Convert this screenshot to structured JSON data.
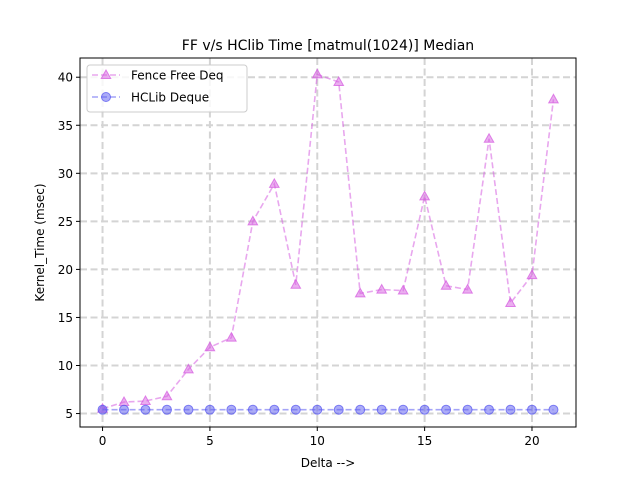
{
  "chart_data": {
    "type": "line",
    "title": "FF v/s HClib Time [matmul(1024)] Median",
    "xlabel": "Delta -->",
    "ylabel": "Kernel_Time (msec)",
    "x": [
      0,
      1,
      2,
      3,
      4,
      5,
      6,
      7,
      8,
      9,
      10,
      11,
      12,
      13,
      14,
      15,
      16,
      17,
      18,
      19,
      20,
      21
    ],
    "xlim": [
      -1.05,
      22.05
    ],
    "ylim": [
      3.6,
      42.0
    ],
    "xticks": [
      0,
      5,
      10,
      15,
      20
    ],
    "yticks": [
      5,
      10,
      15,
      20,
      25,
      30,
      35,
      40
    ],
    "grid": true,
    "legend_position": "upper-left",
    "series": [
      {
        "name": "Fence Free Deq",
        "color": "#d55ee0",
        "marker": "triangle-up",
        "linestyle": "dashed",
        "values": [
          5.5,
          6.2,
          6.3,
          6.8,
          9.6,
          11.9,
          12.9,
          25.0,
          28.9,
          18.4,
          40.3,
          39.5,
          17.5,
          17.9,
          17.8,
          27.6,
          18.3,
          17.9,
          33.6,
          16.5,
          19.4,
          37.7
        ]
      },
      {
        "name": "HCLib Deque",
        "color": "#5a5af0",
        "marker": "circle",
        "linestyle": "dashed",
        "values": [
          5.4,
          5.4,
          5.4,
          5.4,
          5.4,
          5.4,
          5.4,
          5.4,
          5.4,
          5.4,
          5.4,
          5.4,
          5.4,
          5.4,
          5.4,
          5.4,
          5.4,
          5.4,
          5.4,
          5.4,
          5.4,
          5.4
        ]
      }
    ]
  }
}
